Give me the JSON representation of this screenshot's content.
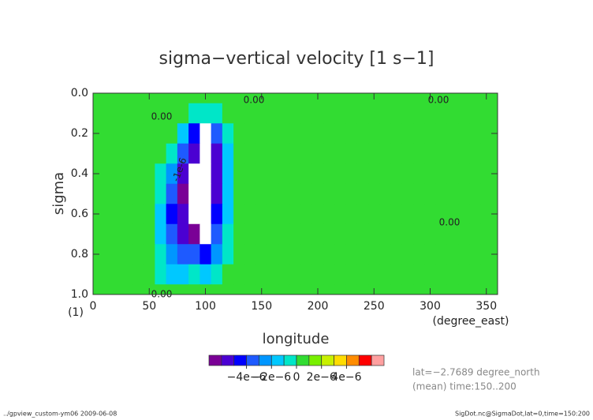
{
  "chart_data": {
    "type": "contour",
    "title": "sigma−vertical velocity [1 s−1]",
    "x_label": "longitude",
    "y_label": "sigma",
    "x_unit": "(degree_east)",
    "y_unit": "(1)",
    "xlim": [
      0,
      360
    ],
    "ylim": [
      0,
      1
    ],
    "y_reversed": true,
    "xticks": [
      0,
      50,
      100,
      150,
      200,
      250,
      300,
      350
    ],
    "yticks": [
      {
        "value": 0,
        "label": "0.0"
      },
      {
        "value": 0.2,
        "label": "0.2"
      },
      {
        "value": 0.4,
        "label": "0.4"
      },
      {
        "value": 0.6,
        "label": "0.6"
      },
      {
        "value": 0.8,
        "label": "0.8"
      },
      {
        "value": 1,
        "label": "1.0"
      }
    ],
    "x": [
      0,
      10,
      20,
      30,
      40,
      50,
      60,
      70,
      80,
      90,
      100,
      110,
      120,
      130,
      140,
      150,
      160,
      170,
      180,
      190,
      200,
      210,
      220,
      230,
      240,
      250,
      260,
      270,
      280,
      290,
      300,
      310,
      320,
      330,
      340,
      350,
      360
    ],
    "y": [
      0,
      0.1,
      0.2,
      0.3,
      0.4,
      0.5,
      0.6,
      0.7,
      0.8,
      0.9,
      1
    ],
    "z": [
      [
        0,
        0,
        0,
        0,
        0,
        0,
        0,
        0,
        0,
        0,
        0,
        0,
        0,
        0,
        0,
        0,
        0,
        0,
        0,
        0,
        0,
        0,
        0,
        0,
        0,
        0,
        0,
        0,
        0,
        0,
        0,
        0,
        0,
        0,
        0,
        0,
        0
      ],
      [
        0,
        0,
        0,
        0,
        0,
        0,
        0,
        0,
        0,
        -1e-06,
        -1e-06,
        -1e-06,
        0,
        0,
        0,
        0,
        0,
        0,
        0,
        0,
        0,
        0,
        0,
        0,
        0,
        0,
        0,
        0,
        0,
        0,
        0,
        0,
        0,
        0,
        0,
        0,
        0
      ],
      [
        0,
        0,
        0,
        0,
        0,
        0,
        0,
        0,
        -2e-06,
        -5e-06,
        -8e-06,
        -4e-06,
        -1e-06,
        0,
        0,
        0,
        0,
        0,
        0,
        0,
        0,
        0,
        0,
        0,
        0,
        0,
        0,
        0,
        0,
        0,
        0,
        0,
        0,
        0,
        0,
        0,
        0
      ],
      [
        0,
        0,
        0,
        0,
        0,
        0,
        0,
        -1e-06,
        -4e-06,
        -6e-06,
        -8e-06,
        -6e-06,
        -2e-06,
        0,
        0,
        0,
        0,
        0,
        0,
        0,
        0,
        0,
        0,
        0,
        0,
        0,
        0,
        0,
        0,
        0,
        0,
        0,
        0,
        0,
        0,
        0,
        0
      ],
      [
        0,
        0,
        0,
        0,
        0,
        0,
        -1e-06,
        -3e-06,
        -6e-06,
        -8e-06,
        -8e-06,
        -6e-06,
        -2e-06,
        0,
        0,
        0,
        0,
        0,
        0,
        0,
        0,
        0,
        0,
        0,
        0,
        0,
        0,
        0,
        0,
        0,
        0,
        0,
        0,
        0,
        0,
        0,
        0
      ],
      [
        0,
        0,
        0,
        0,
        0,
        0,
        -1e-06,
        -4e-06,
        -7e-06,
        -8e-06,
        -8e-06,
        -6e-06,
        -2e-06,
        0,
        0,
        0,
        0,
        0,
        0,
        0,
        0,
        0,
        0,
        0,
        0,
        0,
        0,
        0,
        0,
        0,
        0,
        0,
        0,
        0,
        0,
        0,
        0
      ],
      [
        0,
        0,
        0,
        0,
        0,
        0,
        -2e-06,
        -5e-06,
        -6e-06,
        -8e-06,
        -8e-06,
        -5e-06,
        -2e-06,
        0,
        0,
        0,
        0,
        0,
        0,
        0,
        0,
        0,
        0,
        0,
        0,
        0,
        0,
        0,
        0,
        0,
        0,
        0,
        0,
        0,
        0,
        0,
        0
      ],
      [
        0,
        0,
        0,
        0,
        0,
        0,
        -2e-06,
        -4e-06,
        -6e-06,
        -7e-06,
        -8e-06,
        -4e-06,
        -1e-06,
        0,
        0,
        0,
        0,
        0,
        0,
        0,
        0,
        0,
        0,
        0,
        0,
        0,
        0,
        0,
        0,
        0,
        0,
        0,
        0,
        0,
        0,
        0,
        0
      ],
      [
        0,
        0,
        0,
        0,
        0,
        0,
        -1e-06,
        -3e-06,
        -4e-06,
        -4e-06,
        -5e-06,
        -3e-06,
        -1e-06,
        0,
        0,
        0,
        0,
        0,
        0,
        0,
        0,
        0,
        0,
        0,
        0,
        0,
        0,
        0,
        0,
        0,
        0,
        0,
        0,
        0,
        0,
        0,
        0
      ],
      [
        0,
        0,
        0,
        0,
        0,
        0,
        -1e-06,
        -2e-06,
        -2e-06,
        -1e-06,
        -2e-06,
        -1e-06,
        0,
        0,
        0,
        0,
        0,
        0,
        0,
        0,
        0,
        0,
        0,
        0,
        0,
        0,
        0,
        0,
        0,
        0,
        0,
        0,
        0,
        0,
        0,
        0,
        0
      ],
      [
        0,
        0,
        0,
        0,
        0,
        0,
        0,
        0,
        0,
        0,
        0,
        0,
        0,
        0,
        0,
        0,
        0,
        0,
        0,
        0,
        0,
        0,
        0,
        0,
        0,
        0,
        0,
        0,
        0,
        0,
        0,
        0,
        0,
        0,
        0,
        0,
        0
      ]
    ],
    "levels": [
      -7e-06,
      -6e-06,
      -5e-06,
      -4e-06,
      -3e-06,
      -2e-06,
      -1e-06,
      0,
      1e-06,
      2e-06,
      3e-06,
      4e-06,
      5e-06,
      6e-06,
      7e-06
    ],
    "colors": [
      "#7a0096",
      "#4b00d2",
      "#0000ff",
      "#1e5aff",
      "#0096ff",
      "#00c8ff",
      "#00e6c8",
      "#32dc32",
      "#78f000",
      "#c8f000",
      "#ffdc00",
      "#ff8c00",
      "#ff0000",
      "#ffa0a0"
    ],
    "colorbar_ticks": [
      {
        "value": -4e-06,
        "label": "−4e−6"
      },
      {
        "value": -2e-06,
        "label": "−2e−6"
      },
      {
        "value": 0,
        "label": "0"
      },
      {
        "value": 2e-06,
        "label": "2e−6"
      },
      {
        "value": 4e-06,
        "label": "4e−6"
      }
    ],
    "contour_labels": [
      "0.00",
      "0.00",
      "0.00",
      "0.00",
      "0.00",
      "-1e-6"
    ],
    "annotations": [
      "lat=−2.7689 degree_north",
      "(mean) time:150..200"
    ],
    "footer_left": "../gpview_custom-ym06  2009-06-08",
    "footer_right": "SigDot.nc@SigmaDot,lat=0,time=150:200"
  }
}
